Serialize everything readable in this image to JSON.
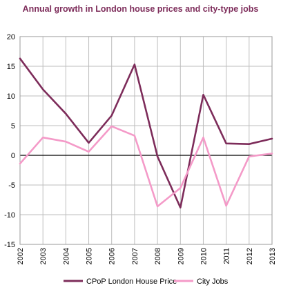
{
  "chart_data": {
    "type": "line",
    "title": "Annual growth in London house prices and city-type jobs",
    "xlabel": "",
    "ylabel": "",
    "x": [
      "2002",
      "2003",
      "2004",
      "2005",
      "2006",
      "2007",
      "2008",
      "2009",
      "2010",
      "2011",
      "2012",
      "2013"
    ],
    "ylim": [
      -15,
      20
    ],
    "yticks": [
      -15,
      -10,
      -5,
      0,
      5,
      10,
      15,
      20
    ],
    "grid": true,
    "legend_position": "bottom",
    "series": [
      {
        "name": "CPoP London House Price",
        "color": "#7d2c5a",
        "values": [
          16.3,
          11.1,
          7.0,
          2.1,
          6.7,
          15.3,
          -0.2,
          -8.8,
          10.2,
          2.0,
          1.9,
          2.8
        ]
      },
      {
        "name": "City Jobs",
        "color": "#f49ac8",
        "values": [
          -1.4,
          3.0,
          2.3,
          0.6,
          4.9,
          3.3,
          -8.6,
          -5.5,
          3.0,
          -8.5,
          -0.2,
          0.3
        ]
      }
    ]
  }
}
